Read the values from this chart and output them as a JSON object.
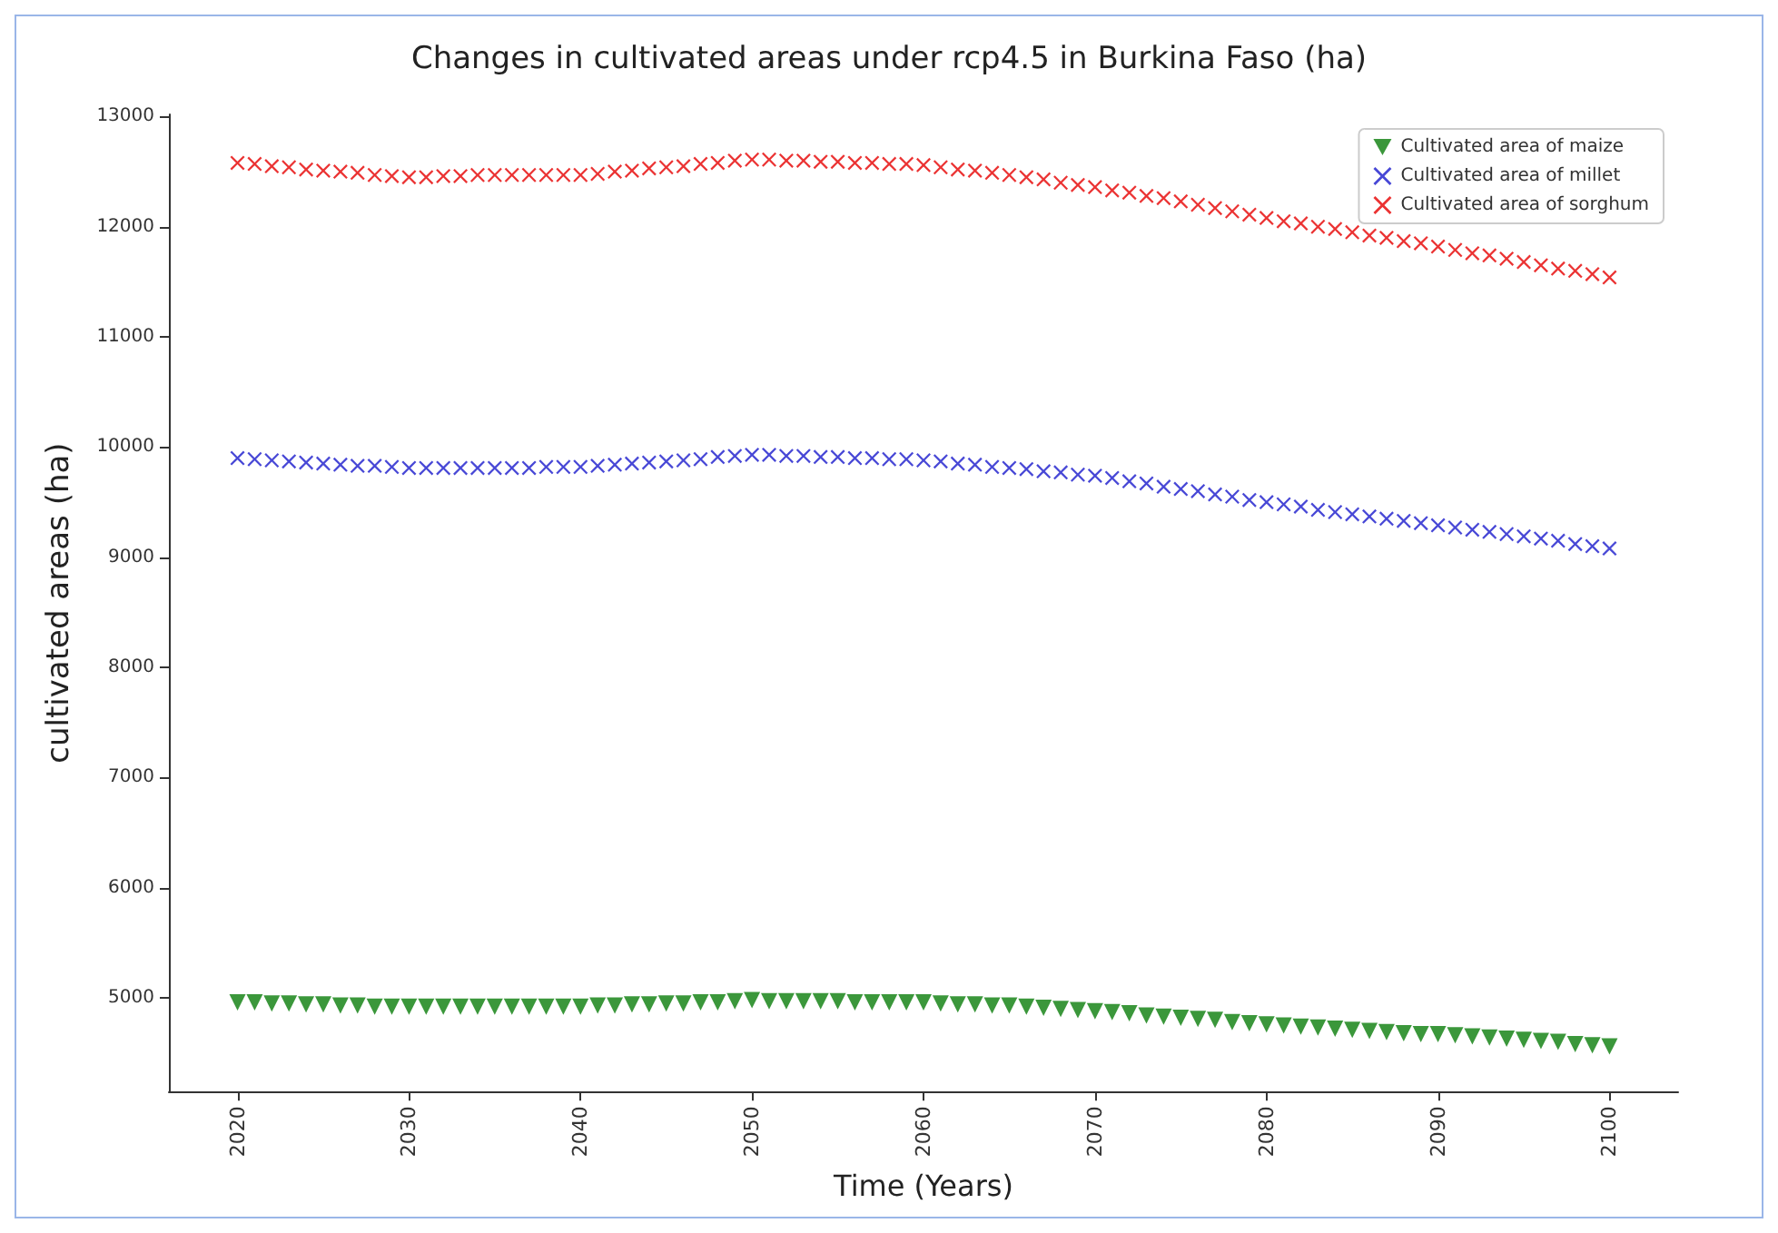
{
  "chart_data": {
    "type": "scatter",
    "title": "Changes in cultivated areas under rcp4.5 in Burkina Faso (ha)",
    "xlabel": "Time (Years)",
    "ylabel": "cultivated areas (ha)",
    "x": [
      2020,
      2021,
      2022,
      2023,
      2024,
      2025,
      2026,
      2027,
      2028,
      2029,
      2030,
      2031,
      2032,
      2033,
      2034,
      2035,
      2036,
      2037,
      2038,
      2039,
      2040,
      2041,
      2042,
      2043,
      2044,
      2045,
      2046,
      2047,
      2048,
      2049,
      2050,
      2051,
      2052,
      2053,
      2054,
      2055,
      2056,
      2057,
      2058,
      2059,
      2060,
      2061,
      2062,
      2063,
      2064,
      2065,
      2066,
      2067,
      2068,
      2069,
      2070,
      2071,
      2072,
      2073,
      2074,
      2075,
      2076,
      2077,
      2078,
      2079,
      2080,
      2081,
      2082,
      2083,
      2084,
      2085,
      2086,
      2087,
      2088,
      2089,
      2090,
      2091,
      2092,
      2093,
      2094,
      2095,
      2096,
      2097,
      2098,
      2099,
      2100
    ],
    "series": [
      {
        "name": "Cultivated area of maize",
        "color": "#0a7d0a",
        "marker": "triangle",
        "values": [
          4960,
          4960,
          4950,
          4950,
          4940,
          4940,
          4930,
          4930,
          4920,
          4920,
          4920,
          4920,
          4920,
          4920,
          4920,
          4920,
          4920,
          4920,
          4920,
          4920,
          4920,
          4930,
          4930,
          4940,
          4940,
          4950,
          4950,
          4960,
          4960,
          4970,
          4980,
          4970,
          4970,
          4970,
          4970,
          4970,
          4960,
          4960,
          4960,
          4960,
          4960,
          4950,
          4940,
          4940,
          4930,
          4930,
          4920,
          4910,
          4900,
          4890,
          4880,
          4870,
          4860,
          4840,
          4830,
          4820,
          4810,
          4800,
          4780,
          4770,
          4760,
          4750,
          4740,
          4730,
          4720,
          4710,
          4700,
          4690,
          4680,
          4670,
          4670,
          4660,
          4650,
          4640,
          4630,
          4620,
          4610,
          4600,
          4580,
          4570,
          4560
        ]
      },
      {
        "name": "Cultivated area of millet",
        "color": "#1a1acc",
        "marker": "cross",
        "values": [
          9900,
          9890,
          9880,
          9870,
          9860,
          9850,
          9840,
          9830,
          9830,
          9820,
          9810,
          9810,
          9810,
          9810,
          9810,
          9810,
          9810,
          9810,
          9820,
          9820,
          9820,
          9830,
          9840,
          9850,
          9860,
          9870,
          9880,
          9890,
          9910,
          9920,
          9930,
          9930,
          9920,
          9920,
          9910,
          9910,
          9900,
          9900,
          9890,
          9890,
          9880,
          9870,
          9850,
          9840,
          9820,
          9810,
          9800,
          9780,
          9770,
          9750,
          9740,
          9720,
          9690,
          9670,
          9640,
          9620,
          9600,
          9570,
          9550,
          9520,
          9500,
          9480,
          9460,
          9430,
          9410,
          9390,
          9370,
          9350,
          9330,
          9310,
          9290,
          9270,
          9250,
          9230,
          9210,
          9190,
          9170,
          9150,
          9120,
          9100,
          9080
        ]
      },
      {
        "name": "Cultivated area of sorghum",
        "color": "#e60000",
        "marker": "cross",
        "values": [
          12580,
          12570,
          12550,
          12540,
          12520,
          12510,
          12500,
          12490,
          12470,
          12460,
          12450,
          12450,
          12460,
          12460,
          12470,
          12470,
          12470,
          12470,
          12470,
          12470,
          12470,
          12480,
          12500,
          12510,
          12530,
          12540,
          12550,
          12570,
          12580,
          12600,
          12610,
          12610,
          12600,
          12600,
          12590,
          12590,
          12580,
          12580,
          12570,
          12570,
          12560,
          12540,
          12520,
          12510,
          12490,
          12470,
          12450,
          12430,
          12400,
          12380,
          12360,
          12330,
          12310,
          12280,
          12260,
          12230,
          12200,
          12170,
          12140,
          12110,
          12080,
          12050,
          12030,
          12000,
          11980,
          11950,
          11920,
          11900,
          11870,
          11850,
          11820,
          11790,
          11760,
          11740,
          11710,
          11680,
          11650,
          11620,
          11600,
          11570,
          11540
        ]
      }
    ],
    "xlim": [
      2016,
      2104
    ],
    "xticks": [
      2020,
      2030,
      2040,
      2050,
      2060,
      2070,
      2080,
      2090,
      2100
    ],
    "ylim": [
      4150,
      13020
    ],
    "yticks": [
      5000,
      6000,
      7000,
      8000,
      9000,
      10000,
      11000,
      12000,
      13000
    ],
    "grid": false,
    "legend": "top right"
  }
}
